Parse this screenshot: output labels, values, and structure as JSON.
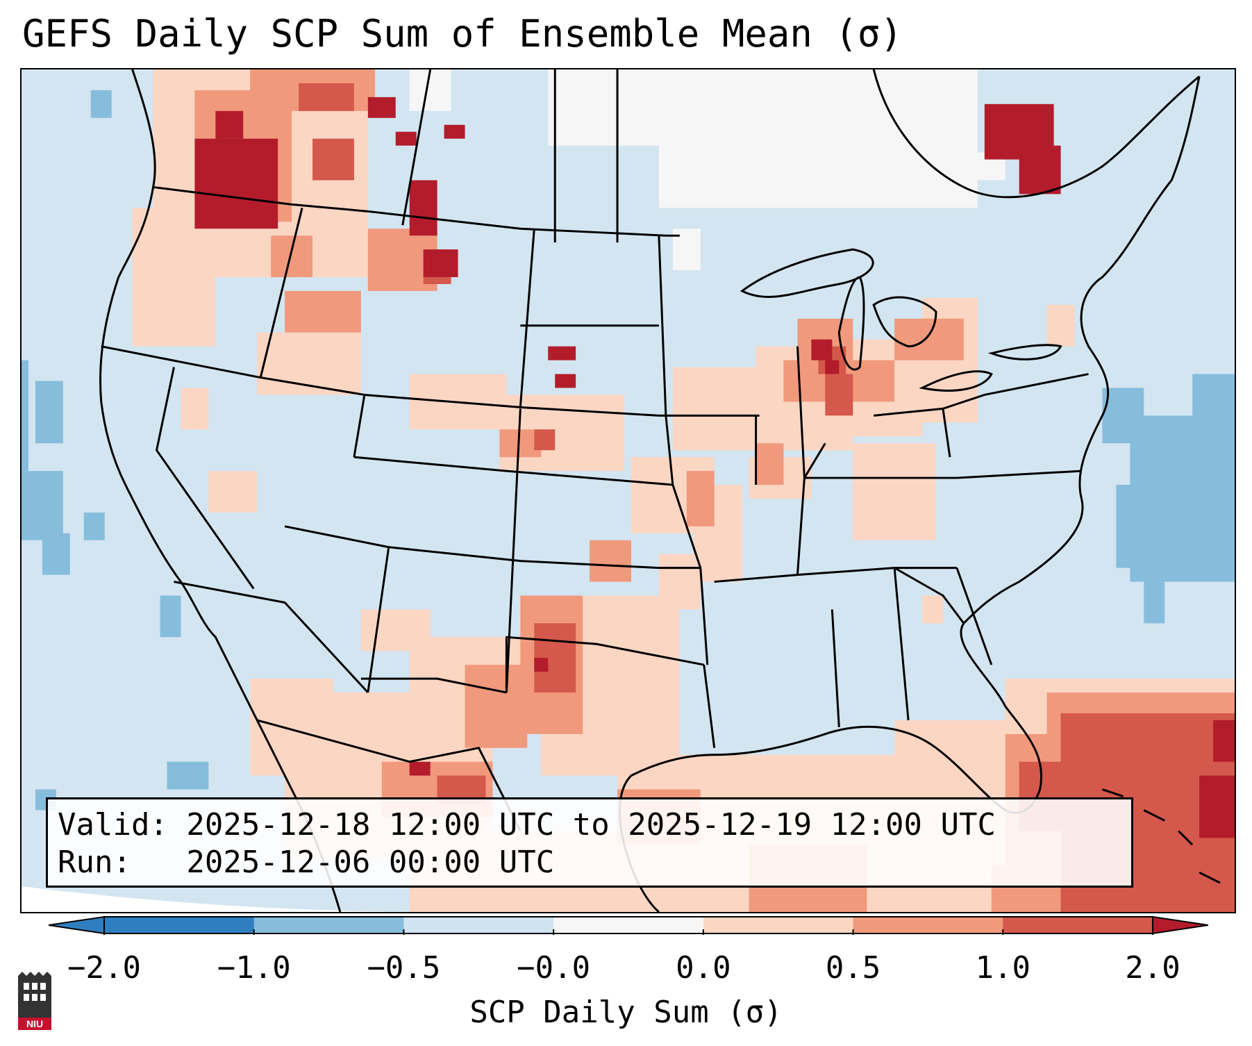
{
  "title": "GEFS Daily SCP Sum of Ensemble Mean (σ)",
  "info": {
    "valid_line": "Valid: 2025-12-18 12:00 UTC to 2025-12-19 12:00 UTC",
    "run_line": "Run:   2025-12-06 00:00 UTC"
  },
  "colorbar": {
    "label": "SCP Daily Sum (σ)",
    "ticks": [
      "−2.0",
      "−1.0",
      "−0.5",
      "−0.0",
      "0.0",
      "0.5",
      "1.0",
      "2.0"
    ],
    "colors": [
      "#2f7fc0",
      "#86bddd",
      "#cfe3f0",
      "#f6f6f6",
      "#fbd6c3",
      "#f0997c",
      "#d4584b",
      "#b31c2b"
    ],
    "extend": "both"
  },
  "logo": {
    "text": "NIU",
    "color": "#c8102e"
  },
  "map": {
    "background_color": "#d3e5f1",
    "region": "Continental United States"
  }
}
